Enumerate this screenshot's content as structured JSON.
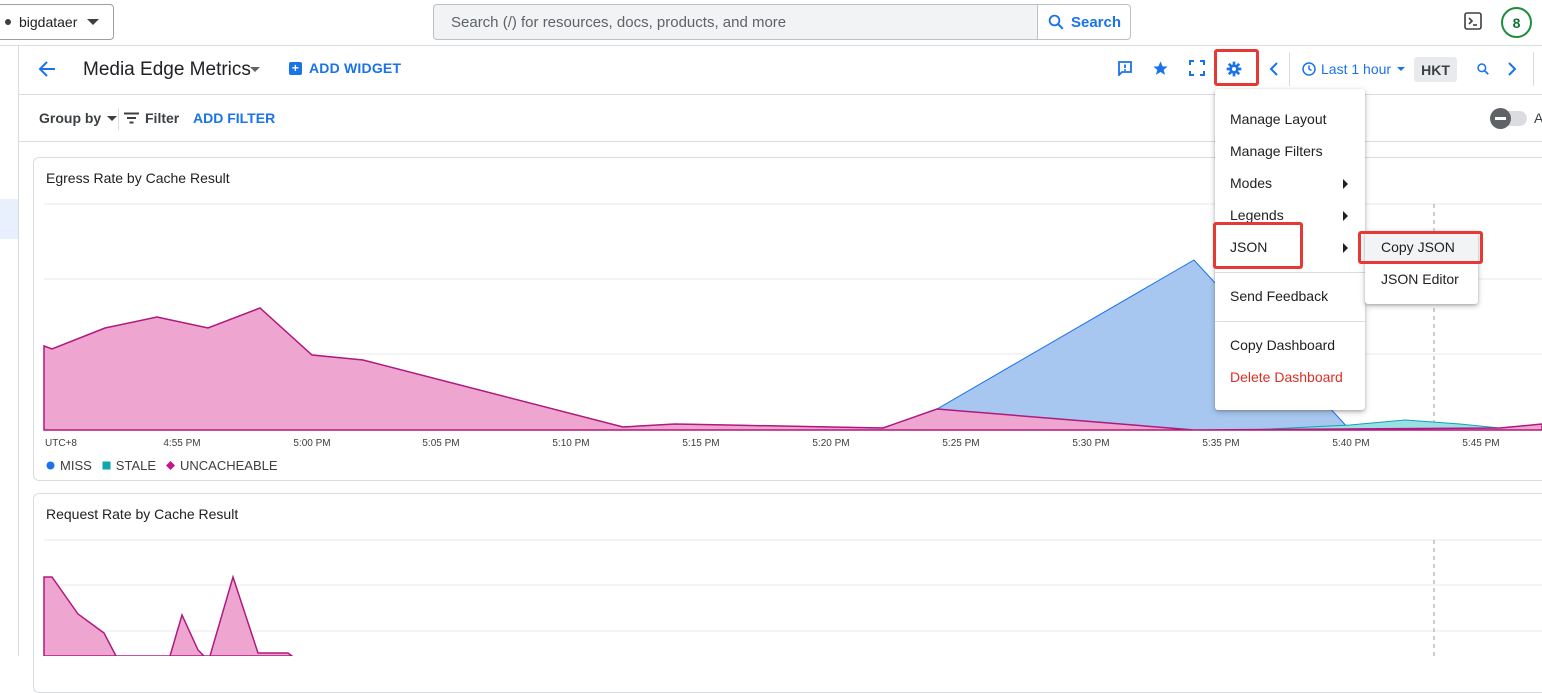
{
  "topbar": {
    "project": "bigdataer",
    "search_placeholder": "Search (/) for resources, docs, products, and more",
    "search_button": "Search",
    "avatar_initial": "8"
  },
  "header": {
    "title": "Media Edge Metrics",
    "add_widget": "ADD WIDGET",
    "time_range": "Last 1 hour",
    "timezone": "HKT"
  },
  "filter_bar": {
    "group_by": "Group by",
    "filter": "Filter",
    "add_filter": "ADD FILTER",
    "toggle_label": "A"
  },
  "menu": {
    "items": [
      "Manage Layout",
      "Manage Filters",
      "Modes",
      "Legends",
      "JSON",
      "Send Feedback",
      "Copy Dashboard",
      "Delete Dashboard"
    ],
    "danger_color": "#d93025"
  },
  "submenu": {
    "items": [
      "Copy JSON",
      "JSON Editor"
    ]
  },
  "chart1": {
    "title": "Egress Rate by Cache Result",
    "x_ticks": [
      "UTC+8",
      "4:55 PM",
      "5:00 PM",
      "5:05 PM",
      "5:10 PM",
      "5:15 PM",
      "5:20 PM",
      "5:25 PM",
      "5:30 PM",
      "5:35 PM",
      "5:40 PM",
      "5:45 PM"
    ],
    "legend": [
      "MISS",
      "STALE",
      "UNCACHEABLE"
    ]
  },
  "chart2": {
    "title": "Request Rate by Cache Result"
  },
  "colors": {
    "miss": "#1a73e8",
    "stale": "#12a4af",
    "uncacheable": "#c5168c",
    "accent": "#1a73e8",
    "highlight": "#e53935"
  }
}
